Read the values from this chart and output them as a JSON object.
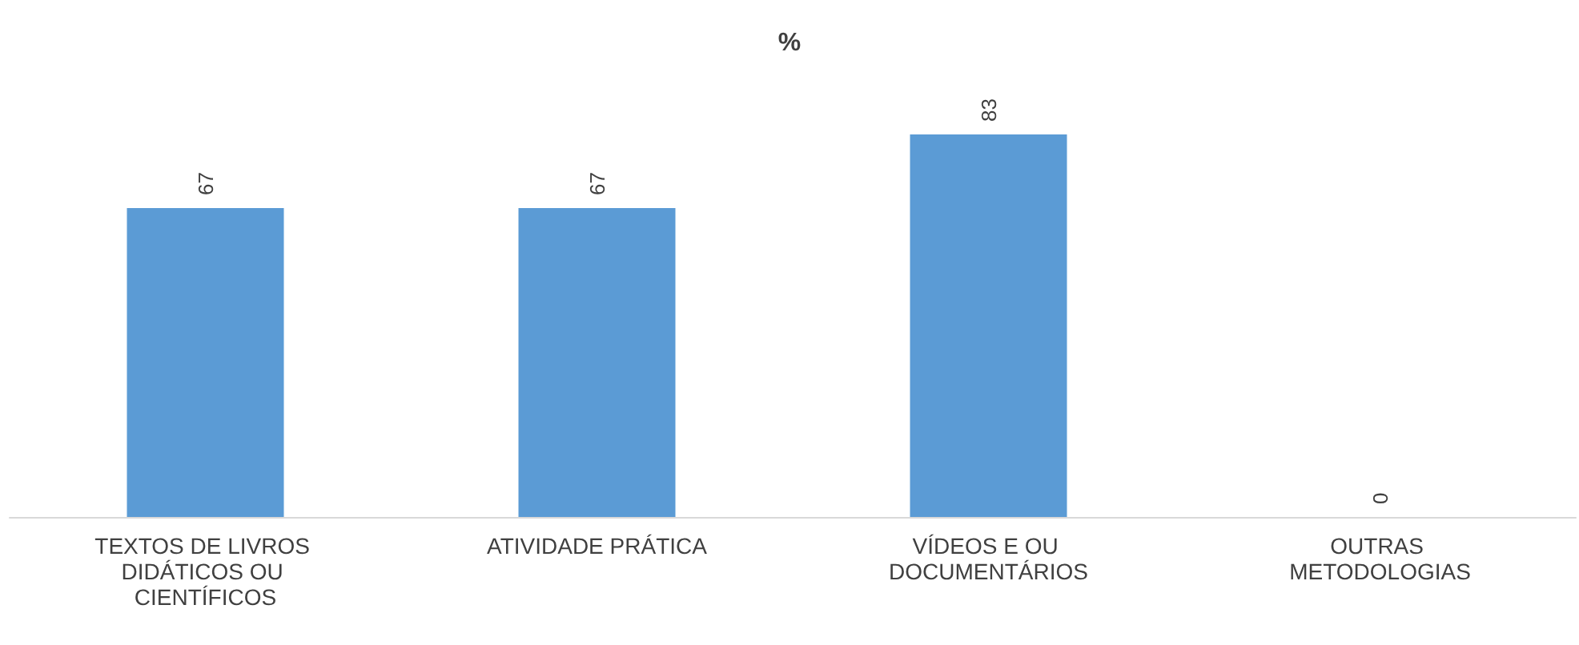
{
  "chart_data": {
    "type": "bar",
    "title": "%",
    "categories": [
      "TEXTOS DE LIVROS DIDÁTICOS OU CIENTÍFICOS",
      "ATIVIDADE PRÁTICA",
      "VÍDEOS E OU DOCUMENTÁRIOS",
      "OUTRAS METODOLOGIAS"
    ],
    "values": [
      67,
      67,
      83,
      0
    ],
    "color": "#5b9bd5",
    "data_labels": true
  }
}
